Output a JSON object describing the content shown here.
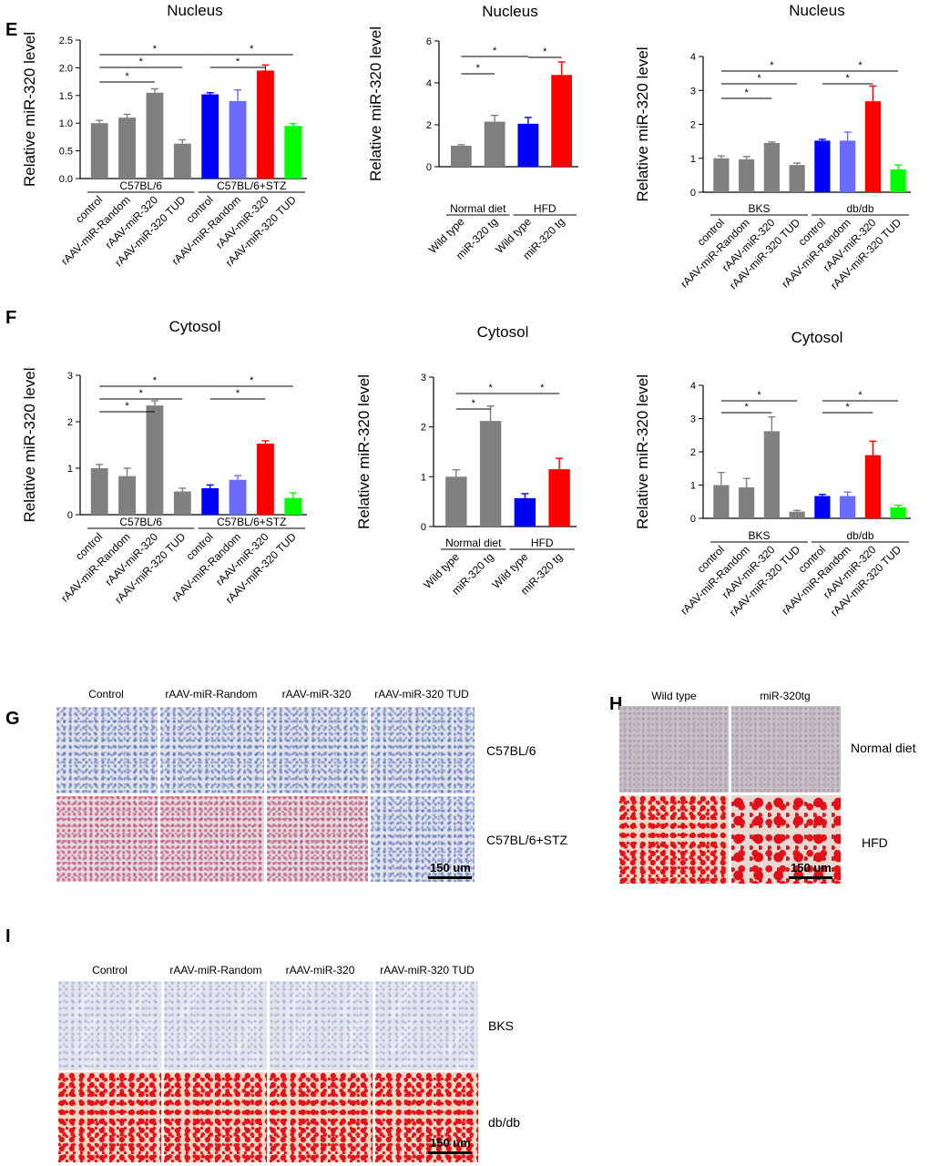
{
  "panel_labels": {
    "E": "E",
    "F": "F",
    "G": "G",
    "H": "H",
    "I": "I"
  },
  "chart_data": [
    {
      "type": "bar",
      "panel": "E",
      "title": "Nucleus",
      "ylabel": "Relative miR-320 level",
      "ylim": [
        0,
        2.5
      ],
      "yticks": [
        "0.0",
        "0.5",
        "1.0",
        "1.5",
        "2.0",
        "2.5"
      ],
      "tick_values": [
        0,
        0.5,
        1.0,
        1.5,
        2.0,
        2.5
      ],
      "categories": [
        "control",
        "rAAV-miR-Random",
        "rAAV-miR-320",
        "rAAV-miR-320 TUD",
        "control",
        "rAAV-miR-Random",
        "rAAV-miR-320",
        "rAAV-miR-320 TUD"
      ],
      "values": [
        1.0,
        1.1,
        1.55,
        0.63,
        1.52,
        1.4,
        1.95,
        0.95
      ],
      "errors": [
        0.05,
        0.06,
        0.07,
        0.07,
        0.03,
        0.2,
        0.1,
        0.04
      ],
      "colors": [
        "#808080",
        "#808080",
        "#808080",
        "#808080",
        "#0000ff",
        "#6b6bff",
        "#ff0000",
        "#00ff00"
      ],
      "groups": [
        {
          "label": "C57BL/6",
          "from": 0,
          "to": 3
        },
        {
          "label": "C57BL/6+STZ",
          "from": 4,
          "to": 7
        }
      ],
      "significance": [
        {
          "from": 0,
          "to": 4,
          "label": "*"
        },
        {
          "from": 0,
          "to": 3,
          "label": "*"
        },
        {
          "from": 0,
          "to": 2,
          "label": "*"
        },
        {
          "from": 4,
          "to": 7,
          "label": "*"
        },
        {
          "from": 4,
          "to": 6,
          "label": "*"
        }
      ]
    },
    {
      "type": "bar",
      "panel": "E",
      "title": "Nucleus",
      "ylabel": "Relative miR-320 level",
      "ylim": [
        0,
        6
      ],
      "yticks": [
        "0",
        "2",
        "4",
        "6"
      ],
      "tick_values": [
        0,
        2,
        4,
        6
      ],
      "categories": [
        "Wild type",
        "miR-320 tg",
        "Wild type",
        "miR-320 tg"
      ],
      "values": [
        1.0,
        2.15,
        2.05,
        4.38
      ],
      "errors": [
        0.05,
        0.3,
        0.3,
        0.62
      ],
      "colors": [
        "#808080",
        "#808080",
        "#0000ff",
        "#ff0000"
      ],
      "groups": [
        {
          "label": "Normal diet",
          "from": 0,
          "to": 1
        },
        {
          "label": "HFD",
          "from": 2,
          "to": 3
        }
      ],
      "significance": [
        {
          "from": 0,
          "to": 2,
          "label": "*"
        },
        {
          "from": 0,
          "to": 1,
          "label": "*"
        },
        {
          "from": 2,
          "to": 3,
          "label": "*"
        }
      ]
    },
    {
      "type": "bar",
      "panel": "E",
      "title": "Nucleus",
      "ylabel": "Relative miR-320 level",
      "ylim": [
        0,
        4
      ],
      "yticks": [
        "0",
        "1",
        "2",
        "3",
        "4"
      ],
      "tick_values": [
        0,
        1,
        2,
        3,
        4
      ],
      "categories": [
        "control",
        "rAAV-miR-Random",
        "rAAV-miR-320",
        "rAAV-miR-320 TUD",
        "control",
        "rAAV-miR-Random",
        "rAAV-miR-320",
        "rAAV-miR-320 TUD"
      ],
      "values": [
        1.0,
        0.97,
        1.45,
        0.8,
        1.52,
        1.52,
        2.68,
        0.67
      ],
      "errors": [
        0.07,
        0.08,
        0.03,
        0.06,
        0.04,
        0.25,
        0.45,
        0.13
      ],
      "colors": [
        "#808080",
        "#808080",
        "#808080",
        "#808080",
        "#0000ff",
        "#6b6bff",
        "#ff0000",
        "#00ff00"
      ],
      "groups": [
        {
          "label": "BKS",
          "from": 0,
          "to": 3
        },
        {
          "label": "db/db",
          "from": 4,
          "to": 7
        }
      ],
      "significance": [
        {
          "from": 0,
          "to": 4,
          "label": "*"
        },
        {
          "from": 0,
          "to": 3,
          "label": "*"
        },
        {
          "from": 0,
          "to": 2,
          "label": "*"
        },
        {
          "from": 4,
          "to": 7,
          "label": "*"
        },
        {
          "from": 4,
          "to": 6,
          "label": "*"
        }
      ]
    },
    {
      "type": "bar",
      "panel": "F",
      "title": "Cytosol",
      "ylabel": "Relative miR-320 level",
      "ylim": [
        0,
        3
      ],
      "yticks": [
        "0",
        "1",
        "2",
        "3"
      ],
      "tick_values": [
        0,
        1,
        2,
        3
      ],
      "categories": [
        "control",
        "rAAV-miR-Random",
        "rAAV-miR-320",
        "rAAV-miR-320 TUD",
        "control",
        "rAAV-miR-Random",
        "rAAV-miR-320",
        "rAAV-miR-320 TUD"
      ],
      "values": [
        1.0,
        0.83,
        2.35,
        0.5,
        0.57,
        0.75,
        1.53,
        0.36
      ],
      "errors": [
        0.08,
        0.17,
        0.1,
        0.07,
        0.07,
        0.09,
        0.06,
        0.11
      ],
      "colors": [
        "#808080",
        "#808080",
        "#808080",
        "#808080",
        "#0000ff",
        "#6b6bff",
        "#ff0000",
        "#00ff00"
      ],
      "groups": [
        {
          "label": "C57BL/6",
          "from": 0,
          "to": 3
        },
        {
          "label": "C57BL/6+STZ",
          "from": 4,
          "to": 7
        }
      ],
      "significance": [
        {
          "from": 0,
          "to": 4,
          "label": "*"
        },
        {
          "from": 0,
          "to": 3,
          "label": "*"
        },
        {
          "from": 0,
          "to": 2,
          "label": "*"
        },
        {
          "from": 4,
          "to": 7,
          "label": "*"
        },
        {
          "from": 4,
          "to": 6,
          "label": "*"
        }
      ]
    },
    {
      "type": "bar",
      "panel": "F",
      "title": "Cytosol",
      "ylabel": "Relative miR-320 level",
      "ylim": [
        0,
        3
      ],
      "yticks": [
        "0",
        "1",
        "2",
        "3"
      ],
      "tick_values": [
        0,
        1,
        2,
        3
      ],
      "categories": [
        "Wild type",
        "miR-320 tg",
        "Wild type",
        "miR-320 tg"
      ],
      "values": [
        1.0,
        2.12,
        0.57,
        1.15
      ],
      "errors": [
        0.14,
        0.3,
        0.09,
        0.22
      ],
      "colors": [
        "#808080",
        "#808080",
        "#0000ff",
        "#ff0000"
      ],
      "groups": [
        {
          "label": "Normal diet",
          "from": 0,
          "to": 1
        },
        {
          "label": "HFD",
          "from": 2,
          "to": 3
        }
      ],
      "significance": [
        {
          "from": 0,
          "to": 2,
          "label": "*"
        },
        {
          "from": 0,
          "to": 1,
          "label": "*"
        },
        {
          "from": 2,
          "to": 3,
          "label": "*"
        }
      ]
    },
    {
      "type": "bar",
      "panel": "F",
      "title": "Cytosol",
      "ylabel": "Relative miR-320 level",
      "ylim": [
        0,
        4
      ],
      "yticks": [
        "0",
        "1",
        "2",
        "3",
        "4"
      ],
      "tick_values": [
        0,
        1,
        2,
        3,
        4
      ],
      "categories": [
        "control",
        "rAAV-miR-Random",
        "rAAV-miR-320",
        "rAAV-miR-320 TUD",
        "control",
        "rAAV-miR-Random",
        "rAAV-miR-320",
        "rAAV-miR-320 TUD"
      ],
      "values": [
        1.0,
        0.93,
        2.62,
        0.2,
        0.67,
        0.67,
        1.9,
        0.33
      ],
      "errors": [
        0.38,
        0.27,
        0.43,
        0.04,
        0.05,
        0.12,
        0.42,
        0.06
      ],
      "colors": [
        "#808080",
        "#808080",
        "#808080",
        "#808080",
        "#0000ff",
        "#6b6bff",
        "#ff0000",
        "#00ff00"
      ],
      "groups": [
        {
          "label": "BKS",
          "from": 0,
          "to": 3
        },
        {
          "label": "db/db",
          "from": 4,
          "to": 7
        }
      ],
      "significance": [
        {
          "from": 0,
          "to": 3,
          "label": "*"
        },
        {
          "from": 0,
          "to": 2,
          "label": "*"
        },
        {
          "from": 4,
          "to": 7,
          "label": "*"
        },
        {
          "from": 4,
          "to": 6,
          "label": "*"
        }
      ]
    }
  ],
  "panel_g": {
    "columns": [
      "Control",
      "rAAV-miR-Random",
      "rAAV-miR-320",
      "rAAV-miR-320 TUD"
    ],
    "rows": [
      "C57BL/6",
      "C57BL/6+STZ"
    ],
    "scale": "150 um"
  },
  "panel_h": {
    "columns": [
      "Wild type",
      "miR-320tg"
    ],
    "rows": [
      "Normal diet",
      "HFD"
    ],
    "scale": "150 um"
  },
  "panel_i": {
    "columns": [
      "Control",
      "rAAV-miR-Random",
      "rAAV-miR-320",
      "rAAV-miR-320 TUD"
    ],
    "rows": [
      "BKS",
      "db/db"
    ],
    "scale": "150 um"
  }
}
